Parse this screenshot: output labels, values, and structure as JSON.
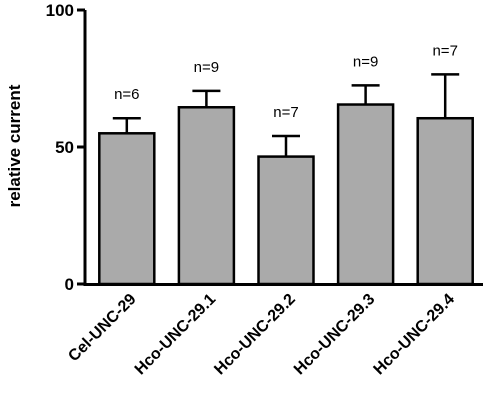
{
  "chart_data": {
    "type": "bar",
    "ylabel": "relative current",
    "ylim": [
      0,
      100
    ],
    "yticks": [
      "0",
      "50",
      "100"
    ],
    "categories": [
      "Cel-UNC-29",
      "Hco-UNC-29.1",
      "Hco-UNC-29.2",
      "Hco-UNC-29.3",
      "Hco-UNC-29.4"
    ],
    "values": [
      55,
      64.5,
      46.5,
      65.5,
      60.5
    ],
    "errors": [
      5.5,
      6,
      7.5,
      7,
      16
    ],
    "annotations": [
      "n=6",
      "n=9",
      "n=7",
      "n=9",
      "n=7"
    ],
    "bar_color": "#aaaaaa"
  }
}
